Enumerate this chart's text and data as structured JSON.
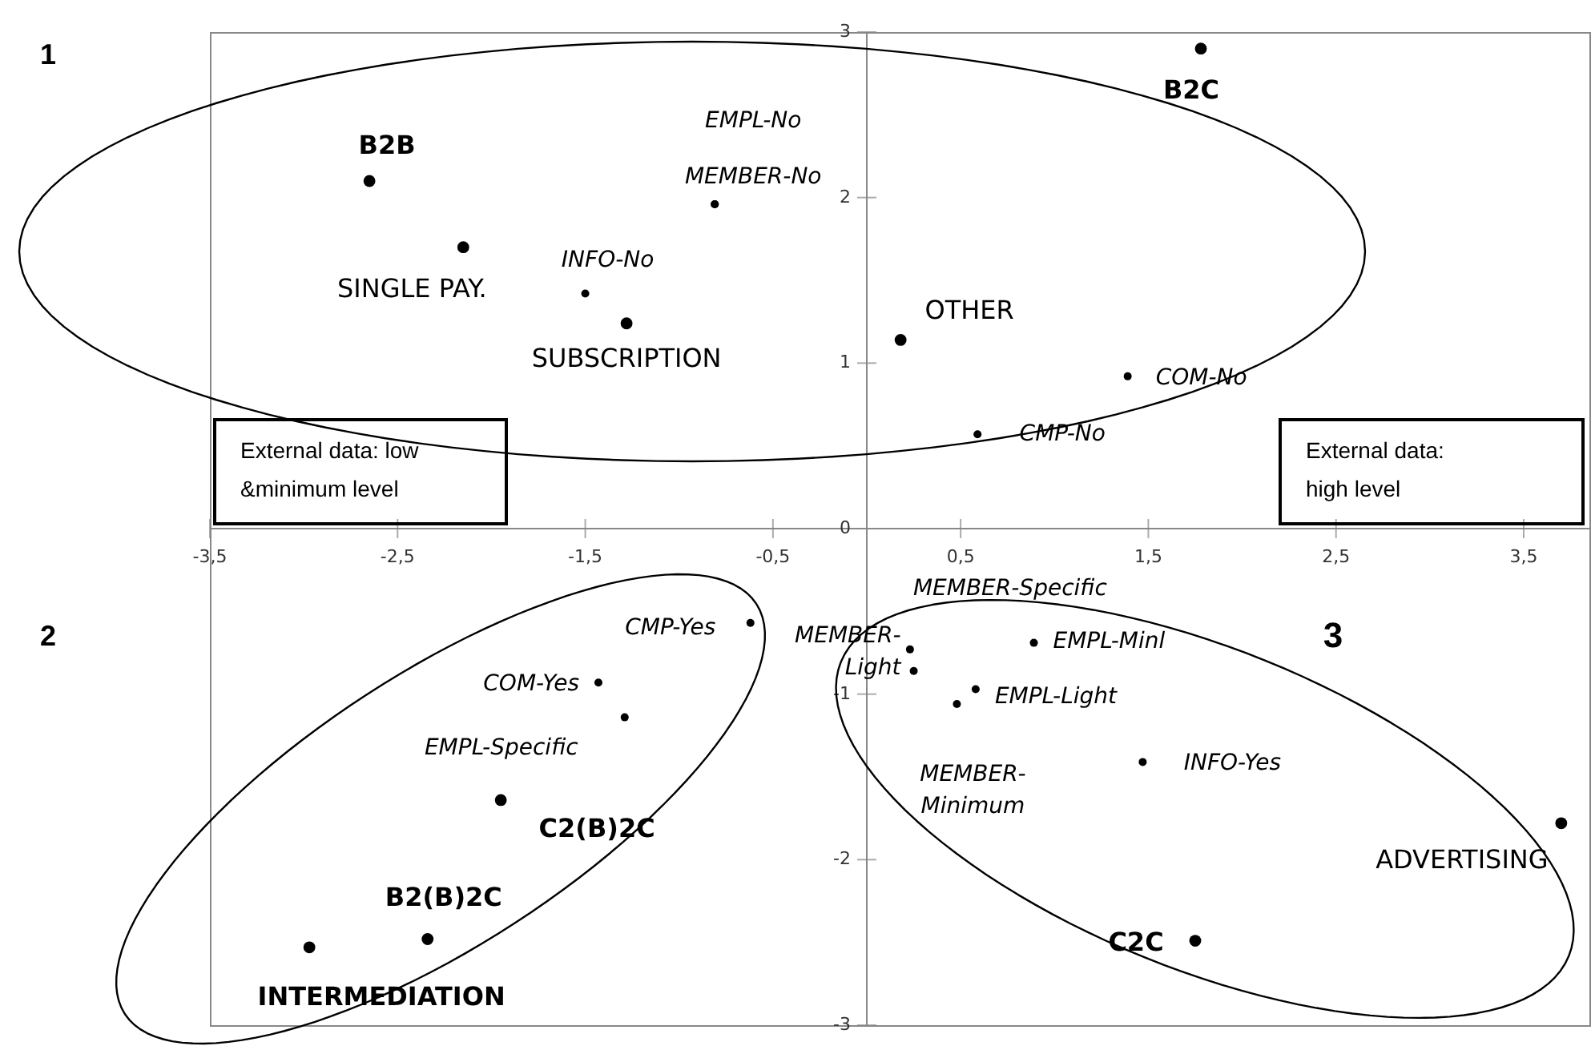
{
  "chart_data": {
    "type": "scatter",
    "xlim": [
      -3.5,
      3.85
    ],
    "ylim": [
      -3,
      3
    ],
    "xticks": [
      {
        "value": -3.5,
        "label": "-3,5"
      },
      {
        "value": -2.5,
        "label": "-2,5"
      },
      {
        "value": -1.5,
        "label": "-1,5"
      },
      {
        "value": -0.5,
        "label": "-0,5"
      },
      {
        "value": 0.5,
        "label": "0,5"
      },
      {
        "value": 1.5,
        "label": "1,5"
      },
      {
        "value": 2.5,
        "label": "2,5"
      },
      {
        "value": 3.5,
        "label": "3,5"
      }
    ],
    "yticks": [
      -3,
      -2,
      -1,
      0,
      1,
      2,
      3
    ],
    "grid": false,
    "marker": "circle",
    "series": [
      {
        "color": "#000000",
        "x": [
          -2.65,
          1.78,
          -1.95,
          -2.34,
          -2.97,
          1.75
        ],
        "values": [
          2.1,
          2.9,
          -1.64,
          -2.48,
          -2.53,
          -2.49
        ],
        "value_labels": [
          "B2B",
          "B2C",
          "C2(B)2C",
          "B2(B)2C",
          "INTERMEDIATION",
          "C2C"
        ]
      },
      {
        "color": "#000000",
        "x": [
          -2.15,
          -1.28,
          0.18,
          3.7
        ],
        "values": [
          1.7,
          1.24,
          1.14,
          -1.78
        ],
        "value_labels": [
          "SINGLE PAY.",
          "SUBSCRIPTION",
          "OTHER",
          "ADVERTISING"
        ]
      },
      {
        "color": "#000000",
        "x": [
          -0.81,
          -0.81,
          -1.5,
          1.39,
          0.59,
          -0.62,
          -1.43,
          -1.29,
          0.25,
          0.23,
          0.89,
          0.58,
          0.48,
          1.47
        ],
        "values": [
          1.96,
          1.96,
          1.42,
          0.92,
          0.57,
          -0.57,
          -0.93,
          -1.14,
          -0.86,
          -0.73,
          -0.69,
          -0.97,
          -1.06,
          -1.41
        ],
        "value_labels": [
          "EMPL-No",
          "MEMBER-No",
          "INFO-No",
          "COM-No",
          "CMP-No",
          "CMP-Yes",
          "COM-Yes",
          "EMPL-Specific",
          "MEMBER-Light",
          "MEMBER-Specific",
          "EMPL-Minl",
          "EMPL-Light",
          "MEMBER-Minimum",
          "INFO-Yes"
        ]
      }
    ],
    "annotations": [
      "1",
      "2",
      "3",
      "External data: low\n&minimum level",
      "External data:\nhigh level"
    ]
  }
}
